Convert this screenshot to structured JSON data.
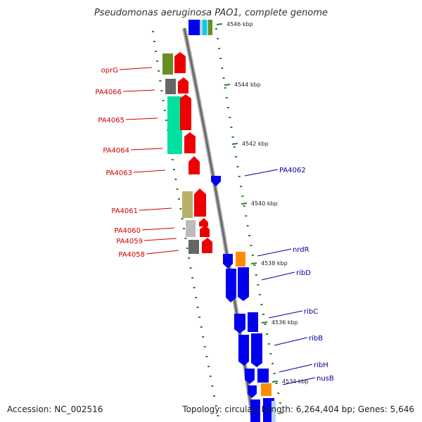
{
  "title": "Pseudomonas aeruginosa PAO1, complete genome",
  "accession": "Accession: NC_002516",
  "summary": "Topology: circular; Length: 6,264,404 bp; Genes: 5,646",
  "colors": {
    "forward_cds": "#ff0000",
    "reverse_cds": "#0000ff",
    "forward_label": "#cc0000",
    "reverse_label": "#000099",
    "backbone": "#888888",
    "tick": "#2e7d32",
    "highlight_orange": "#ff8c00",
    "highlight_teal": "#00e0a0"
  },
  "kbp_ticks": [
    "4546 kbp",
    "4544 kbp",
    "4542 kbp",
    "4540 kbp",
    "4538 kbp",
    "4536 kbp",
    "4534 kbp"
  ],
  "forward_labels": [
    "oprG",
    "PA4066",
    "PA4065",
    "PA4064",
    "PA4063",
    "PA4061",
    "PA4060",
    "PA4059",
    "PA4058"
  ],
  "reverse_labels": [
    "PA4062",
    "nrdR",
    "ribD",
    "ribC",
    "ribB",
    "ribH",
    "nusB"
  ]
}
